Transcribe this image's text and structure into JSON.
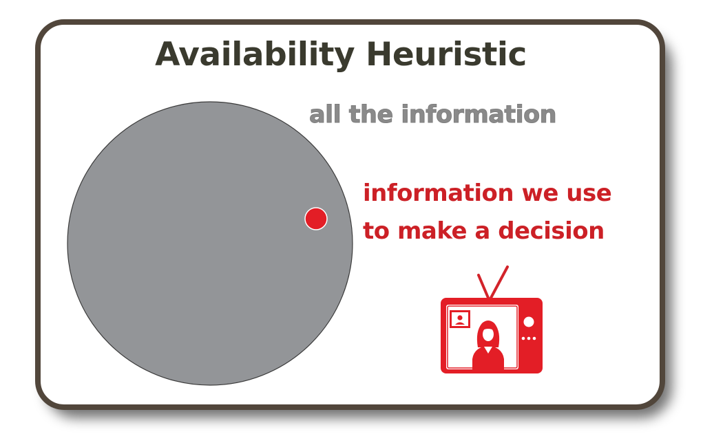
{
  "title": "Availability Heuristic",
  "labels": {
    "all_information": "all the information",
    "used_information_line1": "information we use",
    "used_information_line2": "to make a decision"
  },
  "colors": {
    "card_border": "#51463b",
    "title": "#3a3a2e",
    "big_circle_fill": "#939598",
    "all_info_text": "#8a8a8a",
    "accent_red": "#cc2026"
  },
  "icons": {
    "tv": "television-icon"
  }
}
